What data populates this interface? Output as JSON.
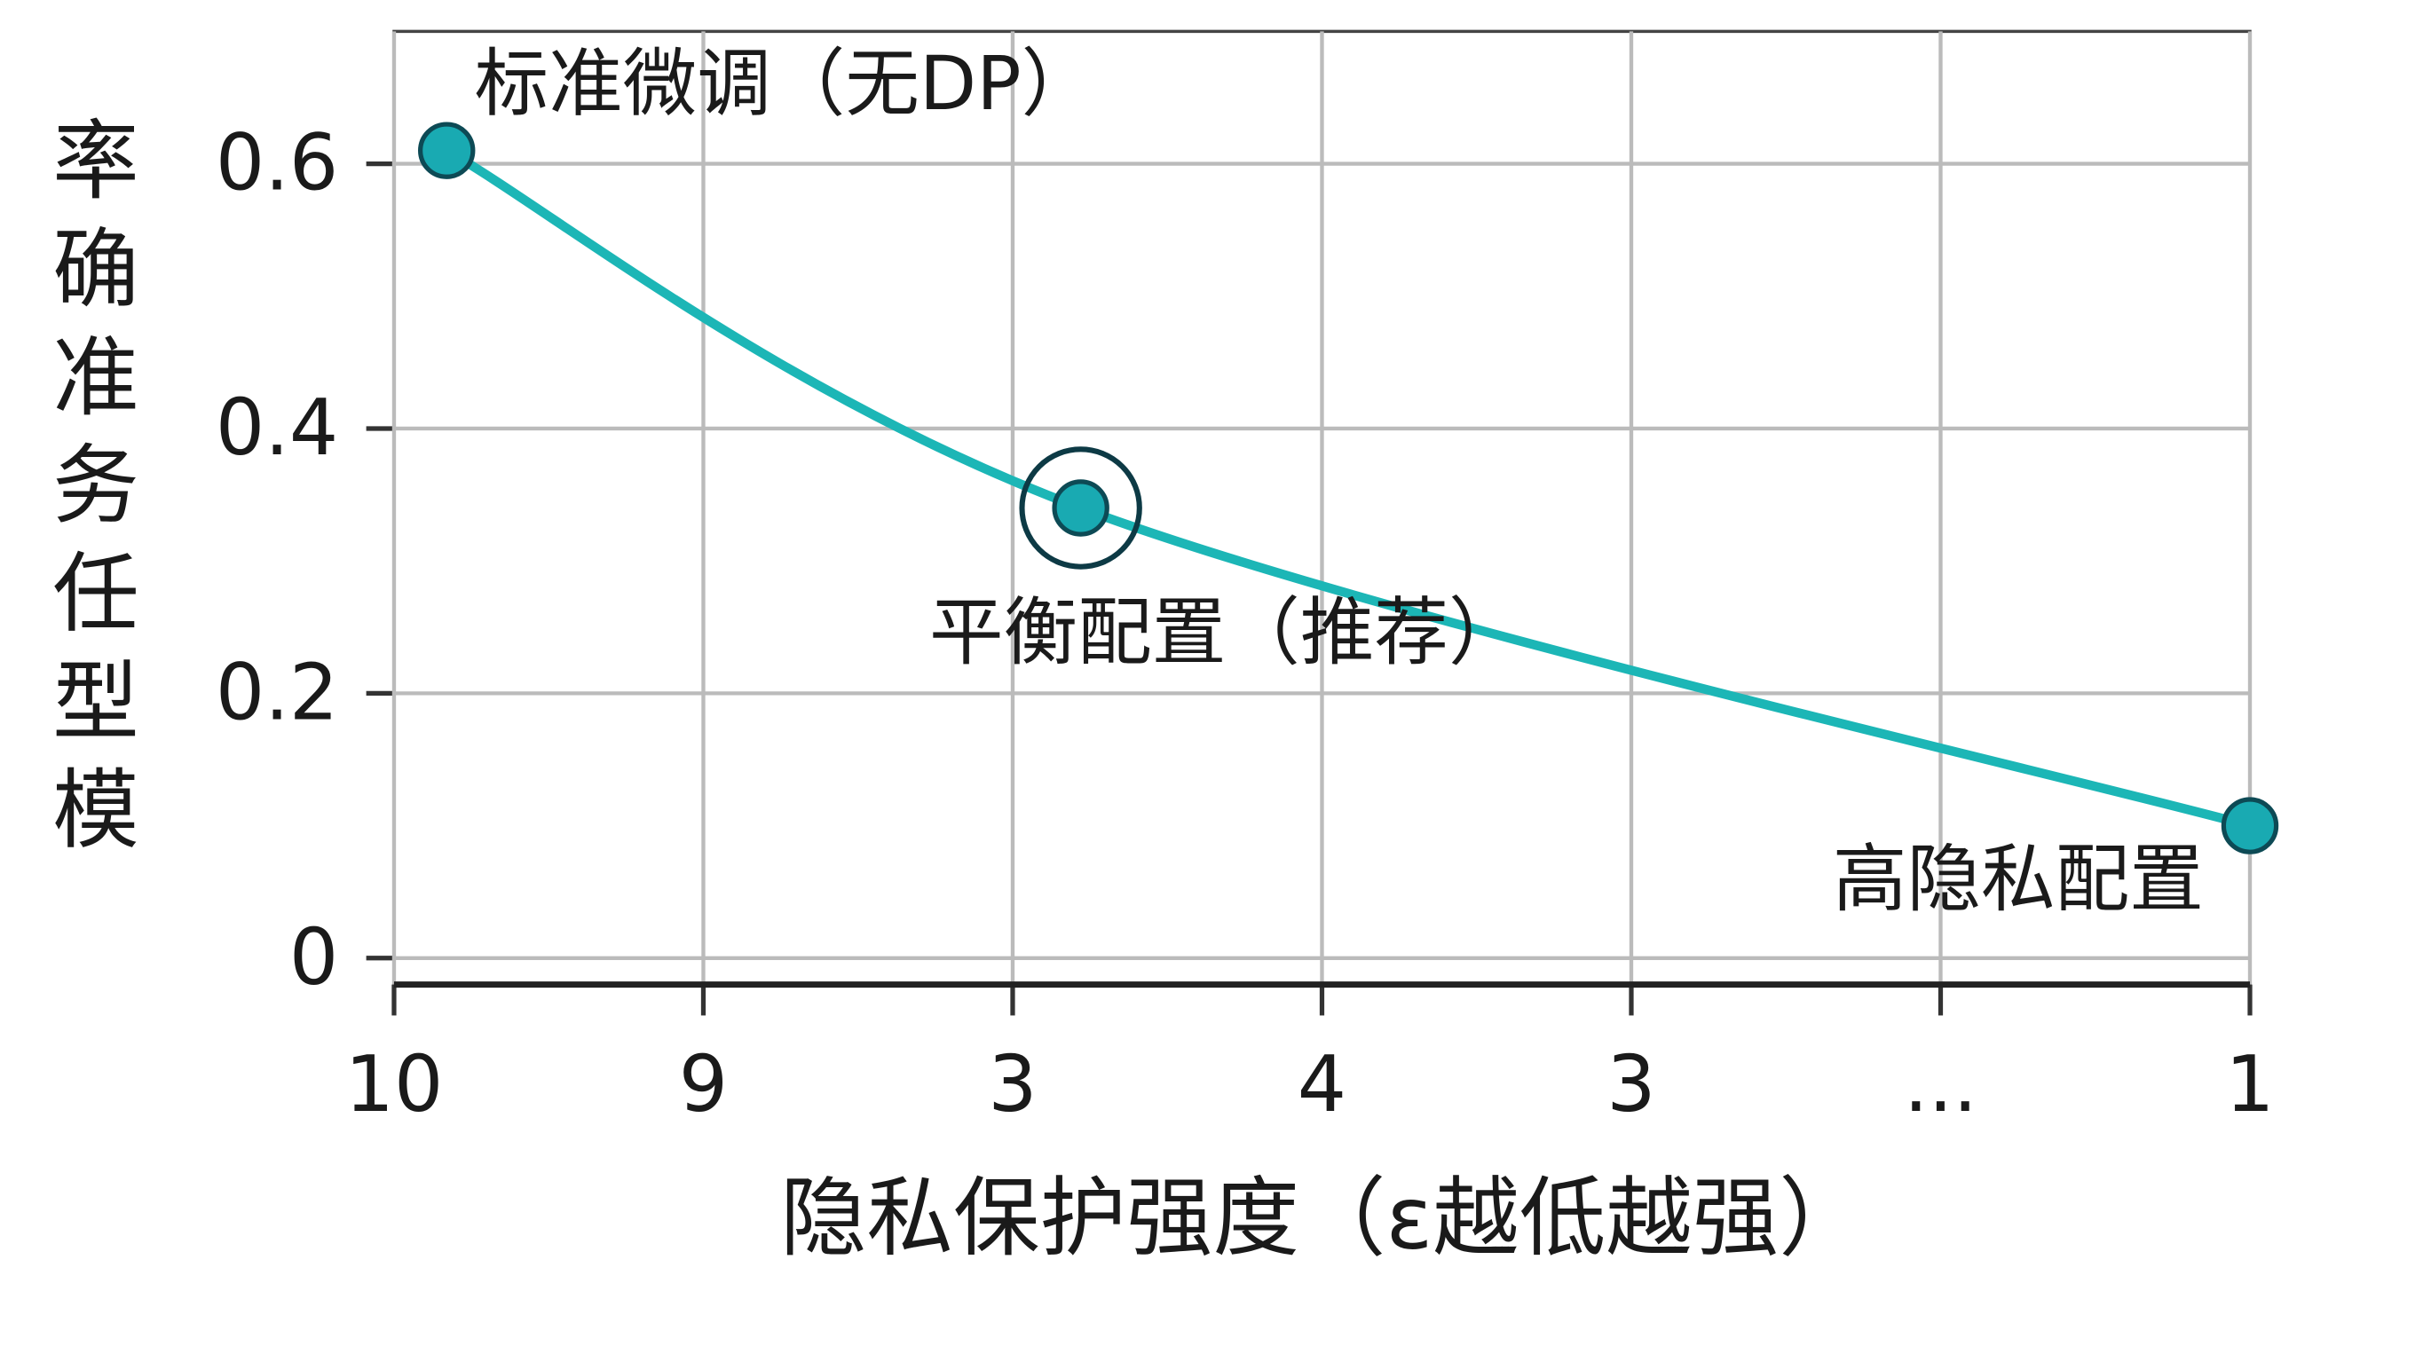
{
  "chart_data": {
    "type": "line",
    "x_label": "隐私保护强度（ε越低越强）",
    "y_label": "模型任务准确率",
    "xlim": [
      0,
      6
    ],
    "xticks": [
      {
        "value": 0,
        "label": "10"
      },
      {
        "value": 1,
        "label": "9"
      },
      {
        "value": 2,
        "label": "3"
      },
      {
        "value": 3,
        "label": "4"
      },
      {
        "value": 4,
        "label": "3"
      },
      {
        "value": 5,
        "label": "..."
      },
      {
        "value": 6,
        "label": "1"
      }
    ],
    "ylim": [
      -0.02,
      0.7
    ],
    "yticks": [
      0,
      0.2,
      0.4,
      0.6
    ],
    "grid": true,
    "x": [
      0.17,
      2.22,
      6
    ],
    "series": [
      {
        "color": "#1cb6b6",
        "marker_color": "#19aab2",
        "values": [
          0.61,
          0.34,
          0.1
        ]
      }
    ],
    "annotations": [
      "标准微调（无DP）",
      "平衡配置（推荐）",
      "高隐私配置"
    ],
    "highlight_index": 1
  }
}
